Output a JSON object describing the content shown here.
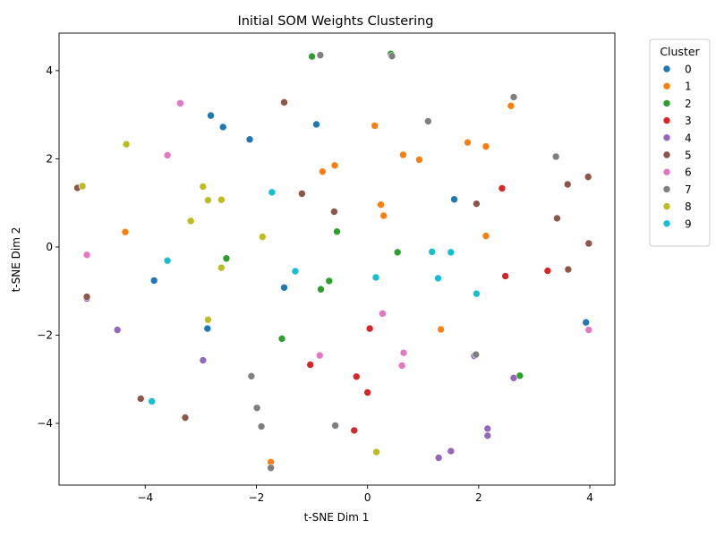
{
  "chart_data": {
    "type": "scatter",
    "title": "Initial SOM Weights Clustering",
    "xlabel": "t-SNE Dim 1",
    "ylabel": "t-SNE Dim 2",
    "xlim": [
      -5.55,
      4.45
    ],
    "ylim": [
      -5.4,
      4.85
    ],
    "xticks": [
      -4,
      -2,
      0,
      2,
      4
    ],
    "yticks": [
      -4,
      -2,
      0,
      2,
      4
    ],
    "grid": false,
    "legend": {
      "title": "Cluster",
      "placement": "outside-top-right"
    },
    "series": [
      {
        "name": "0",
        "color": "#1f77b4",
        "points": [
          [
            -2.82,
            2.98
          ],
          [
            -2.6,
            2.72
          ],
          [
            -2.12,
            2.44
          ],
          [
            -0.92,
            2.78
          ],
          [
            1.56,
            1.08
          ],
          [
            -3.84,
            -0.76
          ],
          [
            -1.5,
            -0.92
          ],
          [
            -2.88,
            -1.85
          ],
          [
            3.93,
            -1.71
          ]
        ]
      },
      {
        "name": "1",
        "color": "#ff7f0e",
        "points": [
          [
            2.58,
            3.2
          ],
          [
            0.13,
            2.75
          ],
          [
            1.8,
            2.37
          ],
          [
            2.13,
            2.28
          ],
          [
            0.64,
            2.09
          ],
          [
            0.93,
            1.98
          ],
          [
            -0.59,
            1.85
          ],
          [
            -0.81,
            1.71
          ],
          [
            0.24,
            0.96
          ],
          [
            0.29,
            0.71
          ],
          [
            2.13,
            0.25
          ],
          [
            -4.36,
            0.34
          ],
          [
            1.32,
            -1.87
          ],
          [
            -1.74,
            -4.88
          ]
        ]
      },
      {
        "name": "2",
        "color": "#2ca02c",
        "points": [
          [
            0.42,
            4.38
          ],
          [
            -1.0,
            4.32
          ],
          [
            -0.55,
            0.35
          ],
          [
            -2.54,
            -0.26
          ],
          [
            0.54,
            -0.12
          ],
          [
            -0.69,
            -0.77
          ],
          [
            -0.84,
            -0.96
          ],
          [
            -1.54,
            -2.08
          ],
          [
            2.74,
            -2.92
          ]
        ]
      },
      {
        "name": "3",
        "color": "#d62728",
        "points": [
          [
            2.42,
            1.33
          ],
          [
            3.24,
            -0.54
          ],
          [
            2.48,
            -0.66
          ],
          [
            0.04,
            -1.85
          ],
          [
            -1.03,
            -2.67
          ],
          [
            -0.2,
            -2.94
          ],
          [
            0.0,
            -3.3
          ],
          [
            -0.24,
            -4.16
          ]
        ]
      },
      {
        "name": "4",
        "color": "#9467bd",
        "points": [
          [
            -5.05,
            -1.17
          ],
          [
            -4.5,
            -1.88
          ],
          [
            -2.96,
            -2.57
          ],
          [
            1.92,
            -2.47
          ],
          [
            2.63,
            -2.97
          ],
          [
            2.16,
            -4.12
          ],
          [
            2.16,
            -4.28
          ],
          [
            1.5,
            -4.63
          ],
          [
            1.28,
            -4.78
          ]
        ]
      },
      {
        "name": "5",
        "color": "#8c564b",
        "points": [
          [
            -5.22,
            1.34
          ],
          [
            -1.5,
            3.28
          ],
          [
            -1.18,
            1.21
          ],
          [
            -0.6,
            0.8
          ],
          [
            1.96,
            0.98
          ],
          [
            3.6,
            1.42
          ],
          [
            3.97,
            1.59
          ],
          [
            3.41,
            0.65
          ],
          [
            3.98,
            0.08
          ],
          [
            3.61,
            -0.51
          ],
          [
            -5.05,
            -1.13
          ],
          [
            -4.08,
            -3.44
          ],
          [
            -3.28,
            -3.87
          ]
        ]
      },
      {
        "name": "6",
        "color": "#e377c2",
        "points": [
          [
            -3.37,
            3.26
          ],
          [
            -3.6,
            2.08
          ],
          [
            -5.05,
            -0.18
          ],
          [
            0.27,
            -1.51
          ],
          [
            0.65,
            -2.4
          ],
          [
            3.98,
            -1.88
          ],
          [
            -0.86,
            -2.46
          ],
          [
            0.62,
            -2.69
          ]
        ]
      },
      {
        "name": "7",
        "color": "#7f7f7f",
        "points": [
          [
            -0.85,
            4.35
          ],
          [
            0.44,
            4.33
          ],
          [
            2.63,
            3.4
          ],
          [
            1.09,
            2.85
          ],
          [
            3.39,
            2.05
          ],
          [
            1.95,
            -2.44
          ],
          [
            -2.09,
            -2.93
          ],
          [
            -1.99,
            -3.65
          ],
          [
            -1.91,
            -4.07
          ],
          [
            -0.58,
            -4.05
          ],
          [
            -1.74,
            -5.01
          ]
        ]
      },
      {
        "name": "8",
        "color": "#bcbd22",
        "points": [
          [
            -4.34,
            2.33
          ],
          [
            -5.13,
            1.38
          ],
          [
            -2.96,
            1.37
          ],
          [
            -2.87,
            1.06
          ],
          [
            -2.63,
            1.07
          ],
          [
            -3.18,
            0.59
          ],
          [
            -1.89,
            0.23
          ],
          [
            -2.63,
            -0.47
          ],
          [
            -2.87,
            -1.65
          ],
          [
            0.16,
            -4.65
          ]
        ]
      },
      {
        "name": "9",
        "color": "#17becf",
        "points": [
          [
            -1.72,
            1.24
          ],
          [
            -3.6,
            -0.31
          ],
          [
            -1.3,
            -0.55
          ],
          [
            1.16,
            -0.11
          ],
          [
            1.5,
            -0.12
          ],
          [
            0.15,
            -0.69
          ],
          [
            1.27,
            -0.71
          ],
          [
            1.96,
            -1.06
          ],
          [
            -3.88,
            -3.5
          ]
        ]
      }
    ]
  }
}
